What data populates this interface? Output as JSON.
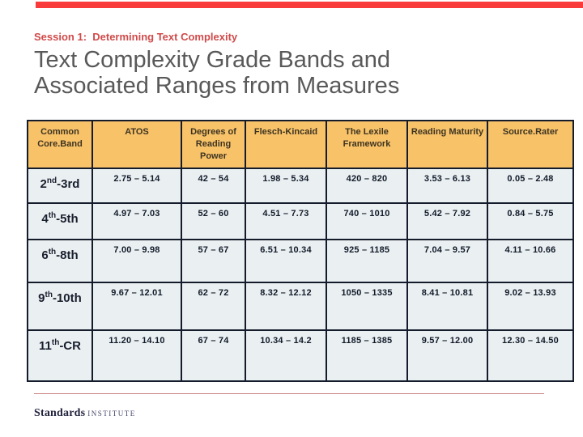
{
  "slide": {
    "kicker": "Session 1:  Determining Text Complexity",
    "title_line1": "Text Complexity Grade Bands and",
    "title_line2": "Associated Ranges from Measures"
  },
  "table": {
    "columns": [
      "Common Core.Band",
      "ATOS",
      "Degrees of Reading Power",
      "Flesch-Kincaid",
      "The Lexile Framework",
      "Reading Maturity",
      "Source.Rater"
    ],
    "rows": [
      {
        "band": {
          "num": "2",
          "sup": "nd",
          "tail": "-3rd"
        },
        "values": [
          "2.75 – 5.14",
          "42 – 54",
          "1.98 – 5.34",
          "420 – 820",
          "3.53 – 6.13",
          "0.05 – 2.48"
        ]
      },
      {
        "band": {
          "num": "4",
          "sup": "th",
          "tail": "-5th"
        },
        "values": [
          "4.97 – 7.03",
          "52 – 60",
          "4.51 – 7.73",
          "740 – 1010",
          "5.42 – 7.92",
          "0.84 – 5.75"
        ]
      },
      {
        "band": {
          "num": "6",
          "sup": "th",
          "tail": "-8th"
        },
        "values": [
          "7.00 – 9.98",
          "57 – 67",
          "6.51 – 10.34",
          "925 – 1185",
          "7.04 – 9.57",
          "4.11 – 10.66"
        ]
      },
      {
        "band": {
          "num": "9",
          "sup": "th",
          "tail": "-10th"
        },
        "values": [
          "9.67 – 12.01",
          "62 – 72",
          "8.32 – 12.12",
          "1050 – 1335",
          "8.41 – 10.81",
          "9.02 – 13.93"
        ]
      },
      {
        "band": {
          "num": "11",
          "sup": "th",
          "tail": "-CR"
        },
        "values": [
          "11.20 – 14.10",
          "67 – 74",
          "10.34 – 14.2",
          "1185 – 1385",
          "9.57 – 12.00",
          "12.30 – 14.50"
        ]
      }
    ]
  },
  "footer": {
    "logo_primary": "Standards",
    "logo_secondary": "INSTITUTE"
  },
  "colors": {
    "top_bar_red": "#fa3b3b",
    "kicker_red": "#d04a4a",
    "title_gray": "#595959",
    "header_cell_bg": "#f8c269",
    "body_cell_bg": "#eaf0f2",
    "table_border": "#141b2b",
    "footer_rule": "#c9817f",
    "logo_navy": "#23243e"
  }
}
